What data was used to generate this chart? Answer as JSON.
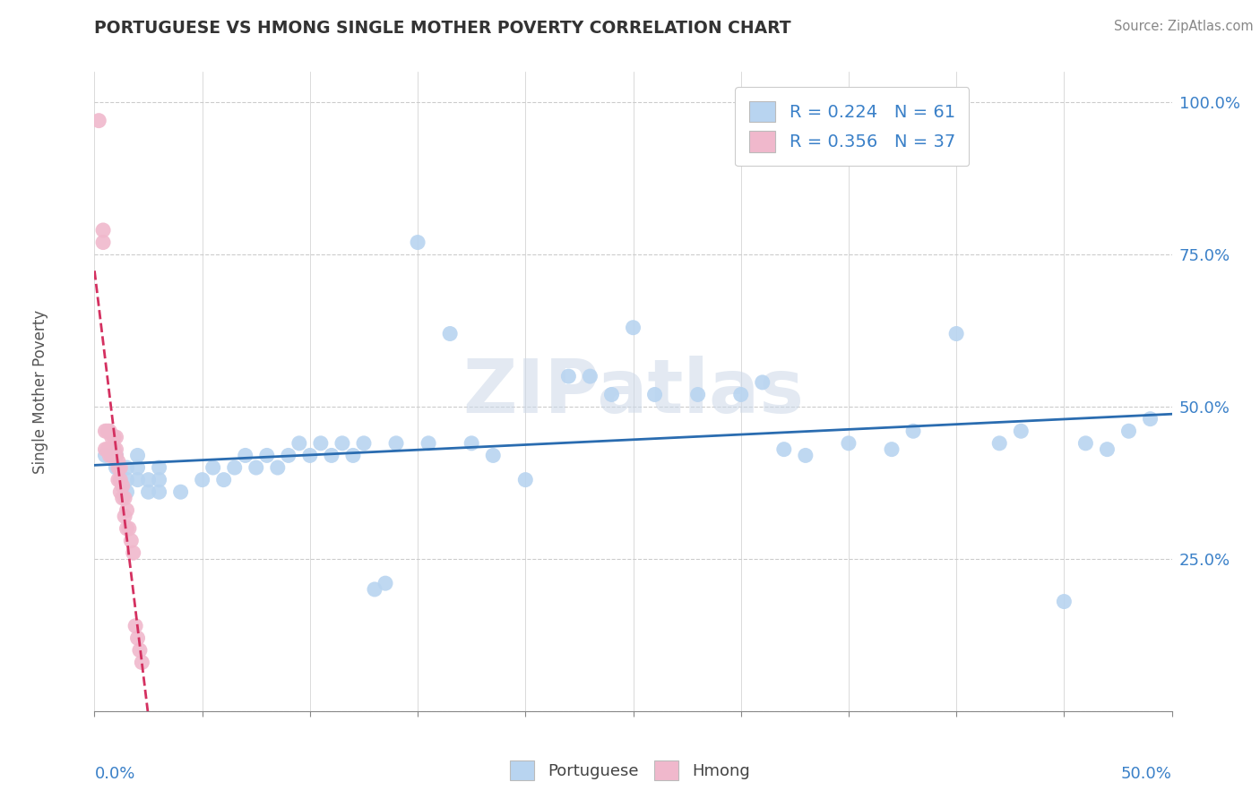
{
  "title": "PORTUGUESE VS HMONG SINGLE MOTHER POVERTY CORRELATION CHART",
  "source": "Source: ZipAtlas.com",
  "ylabel": "Single Mother Poverty",
  "portuguese_R": 0.224,
  "portuguese_N": 61,
  "hmong_R": 0.356,
  "hmong_N": 37,
  "portuguese_color": "#b8d4f0",
  "hmong_color": "#f0b8cc",
  "trendline_blue": "#2a6cb0",
  "trendline_pink": "#d43060",
  "watermark": "ZIPatlas",
  "portuguese_x": [
    0.005,
    0.01,
    0.01,
    0.015,
    0.015,
    0.015,
    0.02,
    0.02,
    0.02,
    0.025,
    0.025,
    0.03,
    0.03,
    0.03,
    0.04,
    0.05,
    0.055,
    0.06,
    0.065,
    0.07,
    0.075,
    0.08,
    0.085,
    0.09,
    0.095,
    0.1,
    0.105,
    0.11,
    0.115,
    0.12,
    0.125,
    0.13,
    0.135,
    0.14,
    0.15,
    0.155,
    0.165,
    0.175,
    0.185,
    0.2,
    0.22,
    0.23,
    0.24,
    0.25,
    0.26,
    0.28,
    0.3,
    0.31,
    0.32,
    0.33,
    0.35,
    0.37,
    0.38,
    0.4,
    0.42,
    0.43,
    0.45,
    0.46,
    0.47,
    0.48,
    0.49
  ],
  "portuguese_y": [
    0.42,
    0.4,
    0.42,
    0.36,
    0.38,
    0.4,
    0.38,
    0.4,
    0.42,
    0.36,
    0.38,
    0.36,
    0.38,
    0.4,
    0.36,
    0.38,
    0.4,
    0.38,
    0.4,
    0.42,
    0.4,
    0.42,
    0.4,
    0.42,
    0.44,
    0.42,
    0.44,
    0.42,
    0.44,
    0.42,
    0.44,
    0.2,
    0.21,
    0.44,
    0.77,
    0.44,
    0.62,
    0.44,
    0.42,
    0.38,
    0.55,
    0.55,
    0.52,
    0.63,
    0.52,
    0.52,
    0.52,
    0.54,
    0.43,
    0.42,
    0.44,
    0.43,
    0.46,
    0.62,
    0.44,
    0.46,
    0.18,
    0.44,
    0.43,
    0.46,
    0.48
  ],
  "hmong_x": [
    0.002,
    0.004,
    0.004,
    0.005,
    0.005,
    0.006,
    0.006,
    0.007,
    0.007,
    0.007,
    0.008,
    0.008,
    0.008,
    0.009,
    0.009,
    0.01,
    0.01,
    0.01,
    0.011,
    0.011,
    0.011,
    0.012,
    0.012,
    0.012,
    0.013,
    0.013,
    0.014,
    0.014,
    0.015,
    0.015,
    0.016,
    0.017,
    0.018,
    0.019,
    0.02,
    0.021,
    0.022
  ],
  "hmong_y": [
    0.97,
    0.77,
    0.79,
    0.43,
    0.46,
    0.43,
    0.46,
    0.43,
    0.46,
    0.42,
    0.43,
    0.45,
    0.42,
    0.43,
    0.45,
    0.43,
    0.45,
    0.42,
    0.4,
    0.38,
    0.41,
    0.4,
    0.38,
    0.36,
    0.37,
    0.35,
    0.35,
    0.32,
    0.33,
    0.3,
    0.3,
    0.28,
    0.26,
    0.14,
    0.12,
    0.1,
    0.08
  ],
  "xlim": [
    0.0,
    0.5
  ],
  "ylim": [
    0.0,
    1.05
  ],
  "ytick_vals": [
    0.0,
    0.25,
    0.5,
    0.75,
    1.0
  ],
  "yticklabels": [
    "",
    "25.0%",
    "50.0%",
    "75.0%",
    "100.0%"
  ],
  "xtick_vals": [
    0.0,
    0.05,
    0.1,
    0.15,
    0.2,
    0.25,
    0.3,
    0.35,
    0.4,
    0.45,
    0.5
  ],
  "background_color": "#ffffff",
  "grid_color": "#cccccc",
  "title_color": "#333333",
  "label_color": "#3a80c8",
  "axis_color": "#888888"
}
